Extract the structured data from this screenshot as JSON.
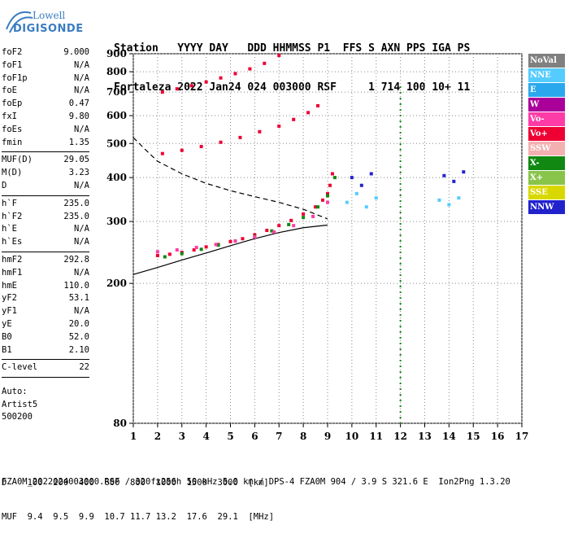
{
  "logo": {
    "line1": "Lowell",
    "line2": "DIGISONDE"
  },
  "header": {
    "line1": "Station   YYYY DAY   DDD HHMMSS P1  FFS S AXN PPS IGA PS",
    "line2": "Fortaleza 2022 Jan24 024 003000 RSF     1 714 100 10+ 11"
  },
  "params": {
    "group1": [
      {
        "label": "foF2",
        "value": "9.000"
      },
      {
        "label": "foF1",
        "value": "N/A"
      },
      {
        "label": "foF1p",
        "value": "N/A"
      },
      {
        "label": "foE",
        "value": "N/A"
      },
      {
        "label": "foEp",
        "value": "0.47"
      },
      {
        "label": "fxI",
        "value": "9.80"
      },
      {
        "label": "foEs",
        "value": "N/A"
      },
      {
        "label": "fmin",
        "value": "1.35"
      }
    ],
    "group2": [
      {
        "label": "MUF(D)",
        "value": "29.05"
      },
      {
        "label": "M(D)",
        "value": "3.23"
      },
      {
        "label": "D",
        "value": "N/A"
      }
    ],
    "group3": [
      {
        "label": "h`F",
        "value": "235.0"
      },
      {
        "label": "h`F2",
        "value": "235.0"
      },
      {
        "label": "h`E",
        "value": "N/A"
      },
      {
        "label": "h`Es",
        "value": "N/A"
      }
    ],
    "group4": [
      {
        "label": "hmF2",
        "value": "292.8"
      },
      {
        "label": "hmF1",
        "value": "N/A"
      },
      {
        "label": "hmE",
        "value": "110.0"
      },
      {
        "label": "yF2",
        "value": "53.1"
      },
      {
        "label": "yF1",
        "value": "N/A"
      },
      {
        "label": "yE",
        "value": "20.0"
      },
      {
        "label": "B0",
        "value": "52.0"
      },
      {
        "label": "B1",
        "value": "2.10"
      }
    ],
    "group5": [
      {
        "label": "C-level",
        "value": "22"
      }
    ],
    "auto": [
      "Auto:",
      "Artist5",
      "500200"
    ]
  },
  "legend": [
    {
      "label": "NoVal",
      "color": "#808080"
    },
    {
      "label": "NNE",
      "color": "#55ccff"
    },
    {
      "label": "E",
      "color": "#2aa8ee"
    },
    {
      "label": "W",
      "color": "#aa0099"
    },
    {
      "label": "Vo-",
      "color": "#ff3ba8"
    },
    {
      "label": "Vo+",
      "color": "#ee0033"
    },
    {
      "label": "SSW",
      "color": "#f4b0b0"
    },
    {
      "label": "X-",
      "color": "#118811"
    },
    {
      "label": "X+",
      "color": "#88c44a"
    },
    {
      "label": "SSE",
      "color": "#d8d800"
    },
    {
      "label": "NNW",
      "color": "#2222cc"
    }
  ],
  "bottom": {
    "d_row": "D    100  200  400  600  800  1000  1500  3000  [km]",
    "muf_row": "MUF  9.4  9.5  9.9  10.7 11.7 13.2  17.6  29.1  [MHz]"
  },
  "footer": "FZA0M_2022024003000.RSF / 320fx256h 50 kHz 5.0 km / DPS-4 FZA0M 904 / 3.9 S 321.6 E  Ion2Png 1.3.20",
  "chart_data": {
    "type": "scatter",
    "title": "",
    "xlabel": "",
    "ylabel": "",
    "xlim": [
      1,
      17
    ],
    "ylim": [
      80,
      900
    ],
    "yscale": "log",
    "x_ticks": [
      1,
      2,
      3,
      4,
      5,
      6,
      7,
      8,
      9,
      10,
      11,
      12,
      13,
      14,
      15,
      16,
      17
    ],
    "y_ticks": [
      80,
      200,
      300,
      400,
      500,
      600,
      700,
      800,
      900
    ],
    "grid": "dotted",
    "legend_position": "right",
    "series": [
      {
        "name": "Vo+",
        "color": "#ee0033",
        "x": [
          2.0,
          2.5,
          3.0,
          3.5,
          4.0,
          4.5,
          5.0,
          5.5,
          6.0,
          6.5,
          7.0,
          7.5,
          8.0,
          8.5,
          8.8,
          9.0,
          9.1,
          9.2
        ],
        "y": [
          240,
          242,
          245,
          249,
          254,
          258,
          263,
          268,
          275,
          283,
          292,
          302,
          315,
          330,
          345,
          360,
          380,
          410
        ]
      },
      {
        "name": "X-",
        "color": "#118811",
        "x": [
          2.3,
          3.0,
          3.8,
          4.5,
          5.2,
          6.0,
          6.7,
          7.4,
          8.0,
          8.6,
          9.0,
          9.3
        ],
        "y": [
          238,
          243,
          250,
          257,
          264,
          272,
          282,
          294,
          308,
          330,
          355,
          400
        ]
      },
      {
        "name": "Vo-",
        "color": "#ff3ba8",
        "x": [
          2.0,
          2.8,
          3.6,
          4.4,
          5.2,
          6.0,
          6.8,
          7.6,
          8.4,
          9.0
        ],
        "y": [
          246,
          249,
          253,
          258,
          264,
          271,
          280,
          292,
          310,
          340
        ]
      },
      {
        "name": "Vo+",
        "color": "#ee0033",
        "x": [
          2.2,
          3.0,
          3.8,
          4.6,
          5.4,
          6.2,
          7.0,
          7.6,
          8.2,
          8.6
        ],
        "y": [
          468,
          478,
          490,
          504,
          520,
          540,
          560,
          585,
          612,
          640
        ]
      },
      {
        "name": "Vo+",
        "color": "#ee0033",
        "x": [
          2.2,
          2.8,
          3.4,
          4.0,
          4.6,
          5.2,
          5.8,
          6.4,
          7.0
        ],
        "y": [
          700,
          715,
          730,
          748,
          768,
          790,
          815,
          845,
          890
        ]
      },
      {
        "name": "NNE",
        "color": "#55ccff",
        "x": [
          9.8,
          10.2,
          10.6,
          11.0,
          13.6,
          14.0,
          14.4
        ],
        "y": [
          340,
          360,
          330,
          350,
          345,
          335,
          350
        ]
      },
      {
        "name": "NNW",
        "color": "#2222cc",
        "x": [
          10.0,
          10.4,
          10.8,
          13.8,
          14.2,
          14.6
        ],
        "y": [
          400,
          380,
          410,
          405,
          390,
          415
        ]
      }
    ],
    "curves": [
      {
        "name": "profile",
        "style": "solid",
        "x": [
          1.0,
          2.0,
          3.0,
          4.0,
          5.0,
          6.0,
          7.0,
          8.0,
          8.8,
          9.0
        ],
        "y": [
          212,
          222,
          233,
          244,
          256,
          268,
          279,
          288,
          292,
          293
        ]
      },
      {
        "name": "MUF",
        "style": "dashed",
        "x": [
          1.0,
          1.5,
          2.0,
          3.0,
          4.0,
          5.0,
          6.0,
          7.0,
          8.0,
          9.0
        ],
        "y": [
          520,
          480,
          445,
          410,
          385,
          367,
          353,
          340,
          325,
          305
        ]
      }
    ]
  }
}
